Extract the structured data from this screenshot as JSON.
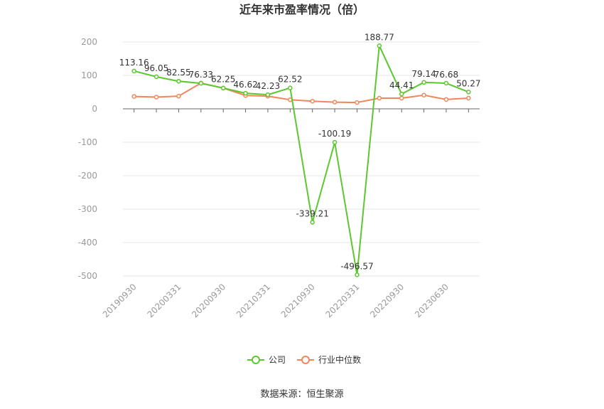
{
  "chart_data": {
    "type": "line",
    "title": "近年来市盈率情况（倍）",
    "categories": [
      "20190930",
      null,
      "20200331",
      null,
      "20200930",
      null,
      "20210331",
      null,
      "20210930",
      null,
      "20220331",
      null,
      "20220930",
      null,
      "20230630",
      null
    ],
    "series": [
      {
        "name": "公司",
        "color": "#5cc72e",
        "values": [
          113.16,
          96.05,
          82.55,
          76.33,
          62.25,
          46.62,
          42.23,
          62.52,
          -339.21,
          -100.19,
          -496.57,
          188.77,
          44.41,
          79.14,
          76.68,
          50.27
        ]
      },
      {
        "name": "行业中位数",
        "color": "#f0875a",
        "values": [
          37,
          35,
          38,
          77,
          62,
          40,
          38,
          27,
          23,
          20,
          19,
          32,
          32,
          41,
          28,
          32
        ]
      }
    ],
    "ylim": [
      -500,
      200
    ],
    "yticks": [
      -500,
      -400,
      -300,
      -200,
      -100,
      0,
      100,
      200
    ],
    "grid": true,
    "source": "数据来源：恒生聚源"
  }
}
